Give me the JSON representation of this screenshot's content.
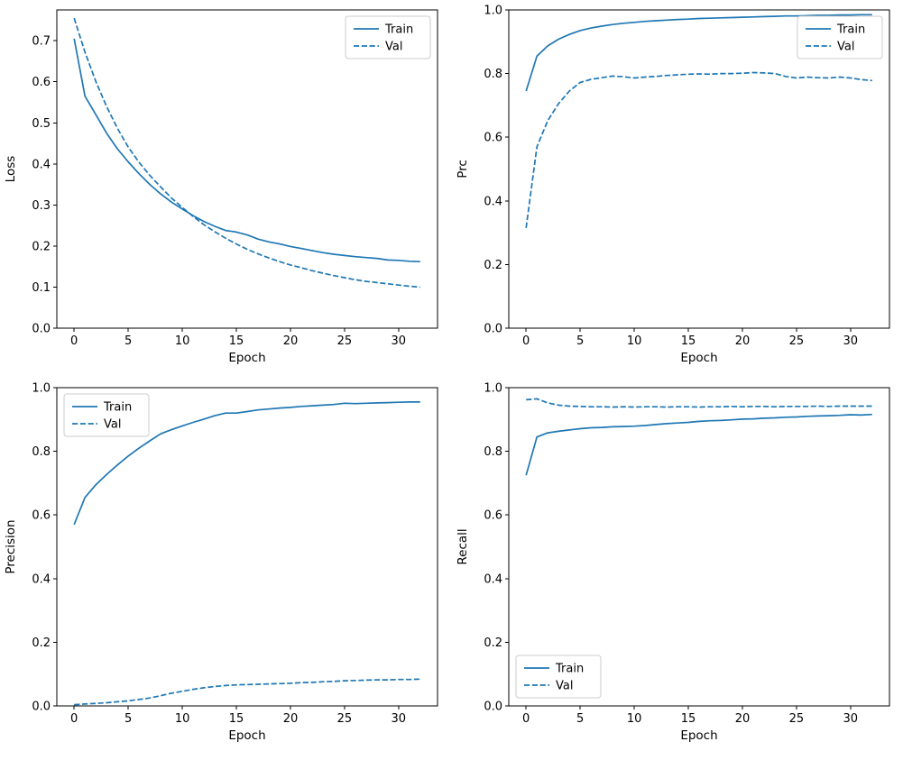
{
  "figure": {
    "background": "#ffffff",
    "line_color": "#1f77b4",
    "axis_color": "#000000",
    "legend_border_color": "#cccccc"
  },
  "chart_data": [
    {
      "id": "loss",
      "type": "line",
      "title": "",
      "xlabel": "Epoch",
      "ylabel": "Loss",
      "xlim": [
        -1.6,
        33.6
      ],
      "ylim": [
        0.0,
        0.775
      ],
      "xticks": [
        0,
        5,
        10,
        15,
        20,
        25,
        30
      ],
      "yticks": [
        0.0,
        0.1,
        0.2,
        0.3,
        0.4,
        0.5,
        0.6,
        0.7
      ],
      "grid": false,
      "legend_position": "upper-right",
      "x": [
        0,
        1,
        2,
        3,
        4,
        5,
        6,
        7,
        8,
        9,
        10,
        11,
        12,
        13,
        14,
        15,
        16,
        17,
        18,
        19,
        20,
        21,
        22,
        23,
        24,
        25,
        26,
        27,
        28,
        29,
        30,
        31,
        32
      ],
      "series": [
        {
          "name": "Train",
          "style": "solid",
          "values": [
            0.705,
            0.565,
            0.52,
            0.475,
            0.437,
            0.405,
            0.376,
            0.35,
            0.327,
            0.307,
            0.29,
            0.274,
            0.26,
            0.248,
            0.238,
            0.234,
            0.227,
            0.217,
            0.21,
            0.205,
            0.199,
            0.194,
            0.189,
            0.184,
            0.18,
            0.177,
            0.174,
            0.172,
            0.17,
            0.166,
            0.165,
            0.163,
            0.162
          ]
        },
        {
          "name": "Val",
          "style": "dashed",
          "values": [
            0.755,
            0.672,
            0.601,
            0.54,
            0.487,
            0.441,
            0.404,
            0.372,
            0.344,
            0.317,
            0.294,
            0.272,
            0.252,
            0.235,
            0.219,
            0.205,
            0.192,
            0.181,
            0.171,
            0.162,
            0.154,
            0.147,
            0.14,
            0.134,
            0.128,
            0.123,
            0.118,
            0.114,
            0.111,
            0.108,
            0.105,
            0.102,
            0.1
          ]
        }
      ]
    },
    {
      "id": "prc",
      "type": "line",
      "title": "",
      "xlabel": "Epoch",
      "ylabel": "Prc",
      "xlim": [
        -1.6,
        33.6
      ],
      "ylim": [
        0.0,
        1.0
      ],
      "xticks": [
        0,
        5,
        10,
        15,
        20,
        25,
        30
      ],
      "yticks": [
        0.0,
        0.2,
        0.4,
        0.6,
        0.8,
        1.0
      ],
      "grid": false,
      "legend_position": "upper-right",
      "x": [
        0,
        1,
        2,
        3,
        4,
        5,
        6,
        7,
        8,
        9,
        10,
        11,
        12,
        13,
        14,
        15,
        16,
        17,
        18,
        19,
        20,
        21,
        22,
        23,
        24,
        25,
        26,
        27,
        28,
        29,
        30,
        31,
        32
      ],
      "series": [
        {
          "name": "Train",
          "style": "solid",
          "values": [
            0.745,
            0.855,
            0.887,
            0.908,
            0.923,
            0.935,
            0.943,
            0.949,
            0.954,
            0.958,
            0.961,
            0.964,
            0.966,
            0.968,
            0.97,
            0.971,
            0.973,
            0.974,
            0.975,
            0.976,
            0.977,
            0.978,
            0.979,
            0.98,
            0.981,
            0.981,
            0.982,
            0.983,
            0.983,
            0.984,
            0.984,
            0.985,
            0.985
          ]
        },
        {
          "name": "Val",
          "style": "dashed",
          "values": [
            0.315,
            0.57,
            0.652,
            0.705,
            0.745,
            0.772,
            0.782,
            0.787,
            0.792,
            0.79,
            0.786,
            0.789,
            0.791,
            0.794,
            0.796,
            0.798,
            0.799,
            0.798,
            0.8,
            0.8,
            0.801,
            0.803,
            0.802,
            0.8,
            0.791,
            0.786,
            0.789,
            0.787,
            0.786,
            0.789,
            0.786,
            0.781,
            0.778
          ]
        }
      ]
    },
    {
      "id": "precision",
      "type": "line",
      "title": "",
      "xlabel": "Epoch",
      "ylabel": "Precision",
      "xlim": [
        -1.6,
        33.6
      ],
      "ylim": [
        0.0,
        1.0
      ],
      "xticks": [
        0,
        5,
        10,
        15,
        20,
        25,
        30
      ],
      "yticks": [
        0.0,
        0.2,
        0.4,
        0.6,
        0.8,
        1.0
      ],
      "grid": false,
      "legend_position": "upper-left",
      "x": [
        0,
        1,
        2,
        3,
        4,
        5,
        6,
        7,
        8,
        9,
        10,
        11,
        12,
        13,
        14,
        15,
        16,
        17,
        18,
        19,
        20,
        21,
        22,
        23,
        24,
        25,
        26,
        27,
        28,
        29,
        30,
        31,
        32
      ],
      "series": [
        {
          "name": "Train",
          "style": "solid",
          "values": [
            0.57,
            0.655,
            0.695,
            0.727,
            0.757,
            0.785,
            0.81,
            0.833,
            0.855,
            0.868,
            0.88,
            0.891,
            0.901,
            0.912,
            0.92,
            0.92,
            0.925,
            0.93,
            0.933,
            0.936,
            0.938,
            0.941,
            0.943,
            0.945,
            0.947,
            0.951,
            0.95,
            0.951,
            0.952,
            0.953,
            0.954,
            0.955,
            0.955
          ]
        },
        {
          "name": "Val",
          "style": "dashed",
          "values": [
            0.004,
            0.006,
            0.008,
            0.01,
            0.013,
            0.016,
            0.02,
            0.025,
            0.032,
            0.04,
            0.046,
            0.052,
            0.057,
            0.061,
            0.064,
            0.066,
            0.067,
            0.068,
            0.069,
            0.07,
            0.071,
            0.073,
            0.074,
            0.076,
            0.077,
            0.079,
            0.08,
            0.081,
            0.082,
            0.082,
            0.083,
            0.083,
            0.084
          ]
        }
      ]
    },
    {
      "id": "recall",
      "type": "line",
      "title": "",
      "xlabel": "Epoch",
      "ylabel": "Recall",
      "xlim": [
        -1.6,
        33.6
      ],
      "ylim": [
        0.0,
        1.0
      ],
      "xticks": [
        0,
        5,
        10,
        15,
        20,
        25,
        30
      ],
      "yticks": [
        0.0,
        0.2,
        0.4,
        0.6,
        0.8,
        1.0
      ],
      "grid": false,
      "legend_position": "lower-left",
      "x": [
        0,
        1,
        2,
        3,
        4,
        5,
        6,
        7,
        8,
        9,
        10,
        11,
        12,
        13,
        14,
        15,
        16,
        17,
        18,
        19,
        20,
        21,
        22,
        23,
        24,
        25,
        26,
        27,
        28,
        29,
        30,
        31,
        32
      ],
      "series": [
        {
          "name": "Train",
          "style": "solid",
          "values": [
            0.725,
            0.845,
            0.858,
            0.863,
            0.867,
            0.871,
            0.874,
            0.875,
            0.877,
            0.878,
            0.879,
            0.881,
            0.884,
            0.887,
            0.889,
            0.891,
            0.894,
            0.896,
            0.897,
            0.899,
            0.901,
            0.902,
            0.904,
            0.905,
            0.907,
            0.908,
            0.91,
            0.911,
            0.912,
            0.913,
            0.915,
            0.914,
            0.916
          ]
        },
        {
          "name": "Val",
          "style": "dashed",
          "values": [
            0.962,
            0.965,
            0.952,
            0.945,
            0.942,
            0.941,
            0.94,
            0.94,
            0.939,
            0.94,
            0.939,
            0.94,
            0.94,
            0.939,
            0.94,
            0.94,
            0.939,
            0.94,
            0.94,
            0.941,
            0.94,
            0.941,
            0.941,
            0.94,
            0.941,
            0.941,
            0.941,
            0.942,
            0.941,
            0.942,
            0.942,
            0.942,
            0.942
          ]
        }
      ]
    }
  ]
}
